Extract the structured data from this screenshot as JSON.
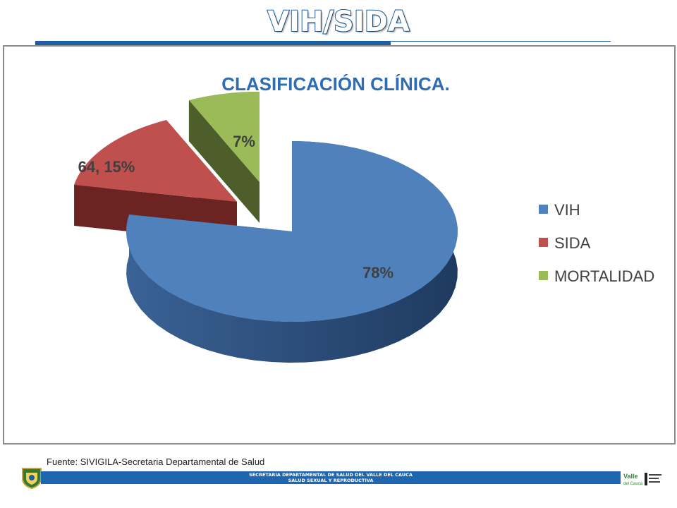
{
  "slide": {
    "title": "VIH/SIDA",
    "source": "Fuente: SIVIGILA-Secretaria Departamental de Salud",
    "footer_line1": "SECRETARIA DEPARTAMENTAL DE SALUD DEL VALLE DEL CAUCA",
    "footer_line2": "SALUD SEXUAL Y REPRODUCTIVA",
    "right_logo_text": "Valle del Cauca"
  },
  "colors": {
    "brand_blue": "#1f5fa0",
    "chart_title": "#2e6db4"
  },
  "chart_data": {
    "type": "pie",
    "style": "3d-exploded",
    "title": "CLASIFICACIÓN CLÍNICA.",
    "slices": [
      {
        "name": "VIH",
        "value": 78,
        "label": "78%",
        "color": "#4f81bd",
        "side": "#2c4d79"
      },
      {
        "name": "SIDA",
        "value": 15,
        "label": "64, 15%",
        "color": "#c0504d",
        "side": "#6b2422"
      },
      {
        "name": "MORTALIDAD",
        "value": 7,
        "label": "7%",
        "color": "#9bbb59",
        "side": "#4d5e2a"
      }
    ],
    "legend": {
      "position": "right",
      "items": [
        "VIH",
        "SIDA",
        "MORTALIDAD"
      ]
    }
  }
}
